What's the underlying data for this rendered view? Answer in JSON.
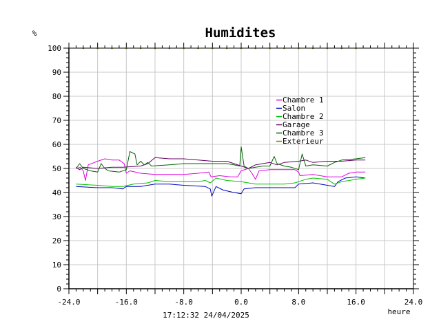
{
  "chart_data": {
    "type": "line",
    "title": "Humidites",
    "ylabel": "%",
    "xlabel": "heure",
    "timestamp": "17:12:32  24/04/2025",
    "xlim": [
      -24,
      24
    ],
    "ylim": [
      0,
      100
    ],
    "grid": true,
    "legend_position": "top-right",
    "x_ticks": [
      "-24.0",
      "-16.0",
      "-8.0",
      "0.0",
      "8.0",
      "16.0",
      "24.0"
    ],
    "y_ticks": [
      "0",
      "10",
      "20",
      "30",
      "40",
      "50",
      "60",
      "70",
      "80",
      "90",
      "100"
    ],
    "series": [
      {
        "name": "Chambre 1",
        "color": "#e000e0",
        "points": [
          [
            -23,
            50
          ],
          [
            -22.4,
            50.5
          ],
          [
            -22,
            49
          ],
          [
            -21.7,
            45
          ],
          [
            -21.3,
            51.5
          ],
          [
            -20,
            53
          ],
          [
            -19,
            54
          ],
          [
            -18,
            53.5
          ],
          [
            -17,
            53.5
          ],
          [
            -16.3,
            52
          ],
          [
            -16,
            48
          ],
          [
            -15.5,
            49
          ],
          [
            -14,
            48
          ],
          [
            -12,
            47.5
          ],
          [
            -10,
            47.5
          ],
          [
            -8,
            47.5
          ],
          [
            -6,
            48
          ],
          [
            -4.5,
            48.5
          ],
          [
            -4.2,
            46.5
          ],
          [
            -3,
            47
          ],
          [
            -1.5,
            46.5
          ],
          [
            -0.5,
            46.5
          ],
          [
            0,
            49
          ],
          [
            1,
            50
          ],
          [
            1.5,
            48
          ],
          [
            2,
            45.5
          ],
          [
            2.5,
            49
          ],
          [
            4,
            49.5
          ],
          [
            6,
            49.5
          ],
          [
            7.5,
            49.5
          ],
          [
            8,
            48.5
          ],
          [
            8.2,
            47
          ],
          [
            10,
            47.5
          ],
          [
            12,
            46.5
          ],
          [
            14,
            46.5
          ],
          [
            15,
            48
          ],
          [
            16,
            48.5
          ],
          [
            17.3,
            48.5
          ]
        ]
      },
      {
        "name": "Salon",
        "color": "#0000c0",
        "points": [
          [
            -23,
            42.5
          ],
          [
            -20,
            42
          ],
          [
            -18,
            42
          ],
          [
            -16.5,
            41.5
          ],
          [
            -16,
            42.5
          ],
          [
            -14,
            42.5
          ],
          [
            -12,
            43.5
          ],
          [
            -10,
            43.5
          ],
          [
            -8,
            43
          ],
          [
            -5,
            42.5
          ],
          [
            -4.3,
            41.5
          ],
          [
            -4.1,
            38.5
          ],
          [
            -3.5,
            42.5
          ],
          [
            -2.5,
            41
          ],
          [
            -1,
            40
          ],
          [
            0,
            39.5
          ],
          [
            0.4,
            41.5
          ],
          [
            2,
            42
          ],
          [
            4,
            42
          ],
          [
            6,
            42
          ],
          [
            7.5,
            42
          ],
          [
            8,
            43.5
          ],
          [
            10,
            44
          ],
          [
            11,
            43.5
          ],
          [
            12,
            43
          ],
          [
            13,
            42.5
          ],
          [
            13.5,
            44.5
          ],
          [
            14.5,
            46
          ],
          [
            16,
            46.5
          ],
          [
            17.3,
            46
          ]
        ]
      },
      {
        "name": "Chambre 2",
        "color": "#00c000",
        "points": [
          [
            -23,
            43.5
          ],
          [
            -20,
            43
          ],
          [
            -18,
            42.5
          ],
          [
            -16.5,
            42.5
          ],
          [
            -15,
            43.5
          ],
          [
            -13,
            44
          ],
          [
            -12,
            45
          ],
          [
            -10,
            44.5
          ],
          [
            -8,
            44.5
          ],
          [
            -6,
            44.5
          ],
          [
            -5,
            45
          ],
          [
            -4.3,
            44
          ],
          [
            -3.5,
            46
          ],
          [
            -2,
            45
          ],
          [
            0,
            44.5
          ],
          [
            1,
            44
          ],
          [
            2,
            43.5
          ],
          [
            4,
            43.5
          ],
          [
            6,
            43.5
          ],
          [
            7.5,
            44
          ],
          [
            9,
            45.5
          ],
          [
            10,
            46
          ],
          [
            12,
            45.5
          ],
          [
            13,
            43.5
          ],
          [
            14,
            44.5
          ],
          [
            16,
            45.5
          ],
          [
            17.3,
            46
          ]
        ]
      },
      {
        "name": "Garage",
        "color": "#600060",
        "points": [
          [
            -23,
            50.5
          ],
          [
            -22.5,
            49.5
          ],
          [
            -22,
            50.5
          ],
          [
            -20,
            50
          ],
          [
            -18,
            50.5
          ],
          [
            -16.5,
            50.5
          ],
          [
            -14,
            51
          ],
          [
            -13,
            52
          ],
          [
            -12,
            54.5
          ],
          [
            -10,
            54
          ],
          [
            -8,
            54
          ],
          [
            -6,
            53.5
          ],
          [
            -4,
            53
          ],
          [
            -2,
            53
          ],
          [
            0,
            51
          ],
          [
            1,
            50
          ],
          [
            2,
            51.5
          ],
          [
            3,
            52
          ],
          [
            4,
            52.5
          ],
          [
            5,
            51.5
          ],
          [
            6,
            52.5
          ],
          [
            8,
            53
          ],
          [
            9,
            53.5
          ],
          [
            10,
            52.5
          ],
          [
            12,
            53
          ],
          [
            14,
            53
          ],
          [
            16,
            53.5
          ],
          [
            17.3,
            53.5
          ]
        ]
      },
      {
        "name": "Chambre 3",
        "color": "#006000",
        "points": [
          [
            -23,
            50
          ],
          [
            -22.5,
            52
          ],
          [
            -22,
            50
          ],
          [
            -21,
            49
          ],
          [
            -20,
            48.5
          ],
          [
            -19.5,
            52
          ],
          [
            -19,
            50
          ],
          [
            -18.5,
            49
          ],
          [
            -17,
            48.5
          ],
          [
            -16,
            49.5
          ],
          [
            -15.5,
            57
          ],
          [
            -14.8,
            56
          ],
          [
            -14.5,
            51.5
          ],
          [
            -14,
            53
          ],
          [
            -13.5,
            51.5
          ],
          [
            -13,
            52.5
          ],
          [
            -12.5,
            51
          ],
          [
            -10,
            51.5
          ],
          [
            -8,
            52
          ],
          [
            -6,
            52
          ],
          [
            -4,
            52
          ],
          [
            -2,
            52
          ],
          [
            -1,
            51.5
          ],
          [
            -0.2,
            51
          ],
          [
            0,
            59
          ],
          [
            0.4,
            51
          ],
          [
            1,
            50
          ],
          [
            2,
            50.5
          ],
          [
            3,
            51
          ],
          [
            4,
            51
          ],
          [
            4.6,
            55
          ],
          [
            5,
            52
          ],
          [
            6,
            51
          ],
          [
            7,
            50.5
          ],
          [
            8,
            49.5
          ],
          [
            8.5,
            56
          ],
          [
            9,
            51
          ],
          [
            10,
            51.5
          ],
          [
            12,
            51
          ],
          [
            13,
            52.5
          ],
          [
            14,
            53.5
          ],
          [
            16,
            54
          ],
          [
            17.3,
            54.5
          ]
        ]
      },
      {
        "name": "Exterieur",
        "color": "#808000",
        "points": [
          [
            -24,
            100
          ],
          [
            17.3,
            100
          ]
        ]
      }
    ]
  }
}
